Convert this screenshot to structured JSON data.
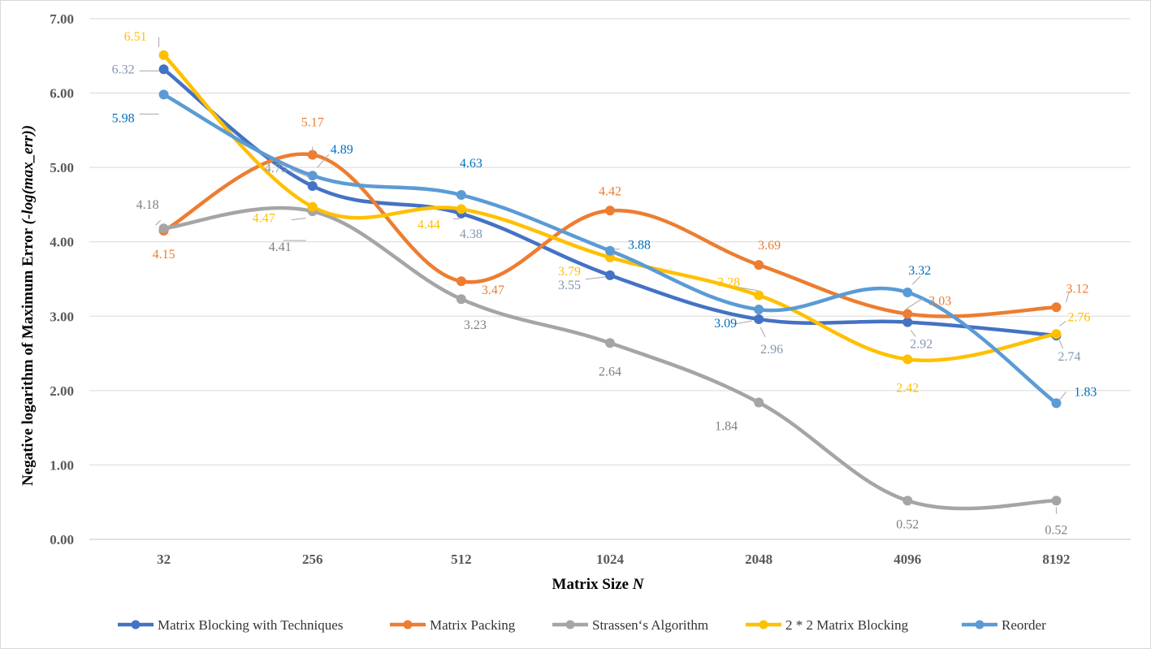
{
  "chart_data": {
    "type": "line",
    "smooth": true,
    "xlabel": "Matrix Size",
    "xlabel_var": "N",
    "ylabel": "Negative logarithm of  Maximum Error",
    "ylabel_expr": "(-log(max_err))",
    "categories": [
      "32",
      "256",
      "512",
      "1024",
      "2048",
      "4096",
      "8192"
    ],
    "ylim": [
      0,
      7
    ],
    "yticks": [
      "0.00",
      "1.00",
      "2.00",
      "3.00",
      "4.00",
      "5.00",
      "6.00",
      "7.00"
    ],
    "grid": "horizontal",
    "legend_position": "bottom",
    "series": [
      {
        "name": "Matrix Blocking with Techniques",
        "color": "#4472C4",
        "label_color": "#8497B0",
        "values": [
          6.32,
          4.75,
          4.38,
          3.55,
          2.96,
          2.92,
          2.74
        ],
        "labels": [
          "6.32",
          "4.75",
          "4.38",
          "3.55",
          "2.96",
          "2.92",
          "2.74"
        ]
      },
      {
        "name": "Matrix Packing",
        "color": "#ED7D31",
        "label_color": "#ED7D31",
        "values": [
          4.15,
          5.17,
          3.47,
          4.42,
          3.69,
          3.03,
          3.12
        ],
        "labels": [
          "4.15",
          "5.17",
          "3.47",
          "4.42",
          "3.69",
          "3.03",
          "3.12"
        ]
      },
      {
        "name": "Strassen‘s Algorithm",
        "color": "#A5A5A5",
        "label_color": "#7F7F7F",
        "values": [
          4.18,
          4.41,
          3.23,
          2.64,
          1.84,
          0.52,
          0.52
        ],
        "labels": [
          "4.18",
          "4.41",
          "3.23",
          "2.64",
          "1.84",
          "0.52",
          "0.52"
        ]
      },
      {
        "name": "2 * 2 Matrix Blocking",
        "color": "#FFC000",
        "label_color": "#FFC000",
        "values": [
          6.51,
          4.47,
          4.44,
          3.79,
          3.28,
          2.42,
          2.76
        ],
        "labels": [
          "6.51",
          "4.47",
          "4.44",
          "3.79",
          "3.28",
          "2.42",
          "2.76"
        ]
      },
      {
        "name": "Reorder",
        "color": "#5B9BD5",
        "label_color": "#0070C0",
        "values": [
          5.98,
          4.89,
          4.63,
          3.88,
          3.09,
          3.32,
          1.83
        ],
        "labels": [
          "5.98",
          "4.89",
          "4.63",
          "3.88",
          "3.09",
          "3.32",
          "1.83"
        ]
      }
    ]
  }
}
